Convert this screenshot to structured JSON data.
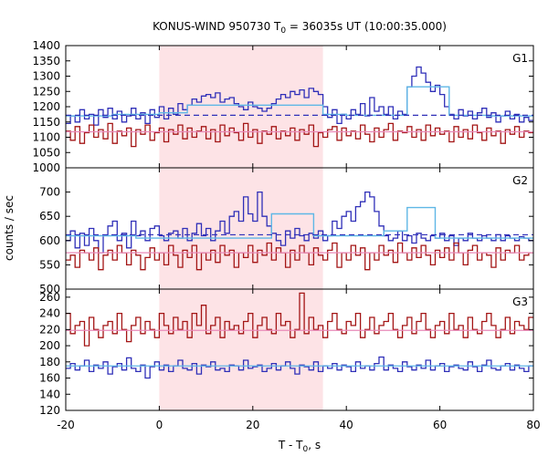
{
  "chart_data": {
    "type": "line",
    "title": "KONUS-WIND 950730 T",
    "title_sub": "0",
    "title_rest": " = 36035s UT (10:00:35.000)",
    "xlabel": "T - T",
    "xlabel_sub": "0",
    "xlabel_rest": ", s",
    "ylabel": "counts / sec",
    "xlim": [
      -20,
      80
    ],
    "x_ticks": [
      "-20",
      "0",
      "20",
      "40",
      "60",
      "80"
    ],
    "x_tick_values": [
      -20,
      0,
      20,
      40,
      60,
      80
    ],
    "shaded_interval": [
      0,
      35
    ],
    "bin_start": -20,
    "bin_width": 1.0,
    "panels": [
      {
        "label": "G1",
        "ylim": [
          1000,
          1400
        ],
        "y_ticks": [
          "1000",
          "1050",
          "1100",
          "1150",
          "1200",
          "1250",
          "1300",
          "1350",
          "1400"
        ],
        "y_tick_values": [
          1000,
          1050,
          1100,
          1150,
          1200,
          1250,
          1300,
          1350,
          1400
        ],
        "series": [
          {
            "role": "high",
            "color": "#2f2fb8",
            "values": [
              1145,
              1170,
              1150,
              1190,
              1160,
              1175,
              1140,
              1190,
              1165,
              1195,
              1160,
              1185,
              1150,
              1170,
              1195,
              1160,
              1180,
              1145,
              1190,
              1165,
              1200,
              1160,
              1195,
              1175,
              1210,
              1190,
              1205,
              1225,
              1215,
              1235,
              1240,
              1230,
              1245,
              1215,
              1225,
              1230,
              1210,
              1200,
              1190,
              1215,
              1200,
              1195,
              1185,
              1195,
              1210,
              1225,
              1240,
              1230,
              1250,
              1240,
              1255,
              1230,
              1260,
              1250,
              1240,
              1200,
              1165,
              1190,
              1145,
              1175,
              1160,
              1190,
              1175,
              1210,
              1170,
              1230,
              1185,
              1200,
              1175,
              1200,
              1160,
              1185,
              1175,
              1265,
              1300,
              1330,
              1310,
              1280,
              1250,
              1270,
              1240,
              1200,
              1175,
              1160,
              1190,
              1170,
              1185,
              1160,
              1180,
              1195,
              1165,
              1180,
              1150,
              1170,
              1185,
              1160,
              1175,
              1150,
              1165,
              1155
            ]
          },
          {
            "role": "low",
            "color": "#a31515",
            "values": [
              1120,
              1090,
              1135,
              1080,
              1115,
              1140,
              1100,
              1125,
              1095,
              1145,
              1080,
              1120,
              1105,
              1130,
              1070,
              1125,
              1110,
              1140,
              1090,
              1115,
              1130,
              1085,
              1125,
              1110,
              1140,
              1095,
              1130,
              1100,
              1120,
              1135,
              1095,
              1125,
              1085,
              1140,
              1105,
              1130,
              1115,
              1090,
              1145,
              1100,
              1125,
              1080,
              1120,
              1110,
              1135,
              1095,
              1120,
              1105,
              1130,
              1090,
              1125,
              1110,
              1140,
              1070,
              1115,
              1100,
              1125,
              1135,
              1090,
              1130,
              1105,
              1120,
              1095,
              1140,
              1110,
              1085,
              1130,
              1100,
              1125,
              1145,
              1090,
              1120,
              1115,
              1135,
              1100,
              1125,
              1090,
              1140,
              1105,
              1130,
              1110,
              1120,
              1085,
              1135,
              1100,
              1125,
              1095,
              1140,
              1115,
              1090,
              1130,
              1105,
              1120,
              1080,
              1125,
              1110,
              1135,
              1100,
              1120,
              1115
            ]
          },
          {
            "role": "rebinned",
            "color": "#5fb7e6",
            "steps": [
              [
                -20,
                1170
              ],
              [
                -10,
                1175
              ],
              [
                0,
                1180
              ],
              [
                6,
                1205
              ],
              [
                35,
                1175
              ],
              [
                40,
                1172
              ],
              [
                53,
                1265
              ],
              [
                62,
                1172
              ],
              [
                70,
                1170
              ],
              [
                80,
                1170
              ]
            ]
          },
          {
            "role": "background",
            "color": "#2f2fb8",
            "style": "dashed",
            "value": 1172
          },
          {
            "role": "background",
            "color": "#e88ab8",
            "style": "solid",
            "value": 1118
          }
        ]
      },
      {
        "label": "G2",
        "ylim": [
          500,
          750
        ],
        "y_ticks": [
          "500",
          "550",
          "600",
          "650",
          "700"
        ],
        "y_tick_values": [
          500,
          550,
          600,
          650,
          700
        ],
        "series": [
          {
            "role": "high",
            "color": "#2f2fb8",
            "values": [
              600,
              620,
              585,
              615,
              590,
              625,
              600,
              575,
              610,
              630,
              640,
              600,
              615,
              585,
              640,
              610,
              620,
              600,
              625,
              630,
              610,
              600,
              615,
              620,
              605,
              625,
              600,
              615,
              635,
              610,
              625,
              600,
              620,
              640,
              615,
              650,
              660,
              640,
              690,
              655,
              640,
              700,
              650,
              630,
              615,
              600,
              590,
              620,
              605,
              625,
              610,
              600,
              615,
              605,
              620,
              600,
              610,
              640,
              625,
              650,
              660,
              640,
              670,
              680,
              700,
              690,
              660,
              630,
              610,
              600,
              605,
              620,
              600,
              610,
              595,
              615,
              605,
              600,
              610,
              605,
              615,
              600,
              610,
              590,
              605,
              600,
              615,
              605,
              600,
              610,
              605,
              600,
              612,
              600,
              610,
              605,
              600,
              608,
              605,
              600
            ]
          },
          {
            "role": "low",
            "color": "#a31515",
            "values": [
              560,
              570,
              545,
              580,
              575,
              560,
              585,
              540,
              570,
              580,
              560,
              590,
              575,
              550,
              580,
              570,
              540,
              565,
              585,
              560,
              575,
              550,
              590,
              570,
              545,
              580,
              565,
              590,
              540,
              575,
              560,
              580,
              555,
              590,
              570,
              580,
              545,
              575,
              565,
              590,
              555,
              580,
              570,
              595,
              560,
              585,
              575,
              545,
              580,
              560,
              590,
              575,
              550,
              585,
              570,
              560,
              580,
              595,
              545,
              575,
              560,
              590,
              570,
              585,
              540,
              575,
              560,
              590,
              570,
              580,
              555,
              595,
              575,
              560,
              585,
              565,
              590,
              570,
              550,
              580,
              565,
              585,
              560,
              595,
              575,
              550,
              580,
              590,
              560,
              575,
              570,
              545,
              585,
              560,
              580,
              575,
              590,
              560,
              570,
              575
            ]
          },
          {
            "role": "rebinned",
            "color": "#5fb7e6",
            "steps": [
              [
                -20,
                610
              ],
              [
                -5,
                605
              ],
              [
                0,
                605
              ],
              [
                24,
                655
              ],
              [
                33,
                610
              ],
              [
                48,
                620
              ],
              [
                53,
                668
              ],
              [
                59,
                605
              ],
              [
                80,
                605
              ]
            ]
          },
          {
            "role": "background",
            "color": "#2f2fb8",
            "style": "dashed",
            "value": 612
          },
          {
            "role": "background",
            "color": "#e88ab8",
            "style": "solid",
            "value": 575
          }
        ]
      },
      {
        "label": "G3",
        "ylim": [
          120,
          270
        ],
        "y_ticks": [
          "120",
          "140",
          "160",
          "180",
          "200",
          "220",
          "240",
          "260"
        ],
        "y_tick_values": [
          120,
          140,
          160,
          180,
          200,
          220,
          240,
          260
        ],
        "series": [
          {
            "role": "high",
            "color": "#2f2fb8",
            "values": [
              172,
              178,
              170,
              175,
              182,
              168,
              176,
              172,
              180,
              165,
              174,
              178,
              170,
              185,
              172,
              168,
              176,
              160,
              174,
              180,
              170,
              176,
              168,
              175,
              182,
              172,
              170,
              178,
              165,
              176,
              174,
              180,
              170,
              172,
              168,
              176,
              175,
              170,
              182,
              172,
              174,
              176,
              168,
              172,
              178,
              170,
              175,
              180,
              172,
              165,
              176,
              174,
              170,
              180,
              168,
              175,
              172,
              178,
              170,
              176,
              174,
              168,
              180,
              172,
              175,
              170,
              178,
              186,
              170,
              176,
              172,
              168,
              180,
              174,
              170,
              176,
              172,
              182,
              170,
              175,
              178,
              168,
              174,
              176,
              172,
              170,
              180,
              174,
              168,
              176,
              182,
              172,
              170,
              175,
              178,
              170,
              176,
              172,
              168,
              175
            ]
          },
          {
            "role": "low",
            "color": "#a31515",
            "values": [
              240,
              215,
              225,
              230,
              200,
              235,
              220,
              210,
              225,
              230,
              215,
              240,
              220,
              205,
              225,
              235,
              215,
              230,
              220,
              210,
              240,
              225,
              215,
              235,
              220,
              230,
              210,
              240,
              225,
              250,
              215,
              225,
              235,
              210,
              230,
              220,
              225,
              215,
              230,
              240,
              210,
              225,
              235,
              220,
              215,
              240,
              225,
              230,
              210,
              220,
              265,
              215,
              235,
              220,
              225,
              210,
              230,
              240,
              220,
              215,
              230,
              225,
              240,
              210,
              220,
              235,
              215,
              225,
              230,
              240,
              220,
              210,
              225,
              235,
              215,
              230,
              240,
              220,
              210,
              225,
              230,
              215,
              240,
              220,
              225,
              210,
              235,
              220,
              215,
              230,
              240,
              225,
              210,
              220,
              235,
              215,
              230,
              225,
              220,
              235
            ]
          },
          {
            "role": "background",
            "color": "#5fb7e6",
            "style": "solid",
            "value": 175
          },
          {
            "role": "background",
            "color": "#e88ab8",
            "style": "solid",
            "value": 219
          }
        ]
      }
    ]
  }
}
